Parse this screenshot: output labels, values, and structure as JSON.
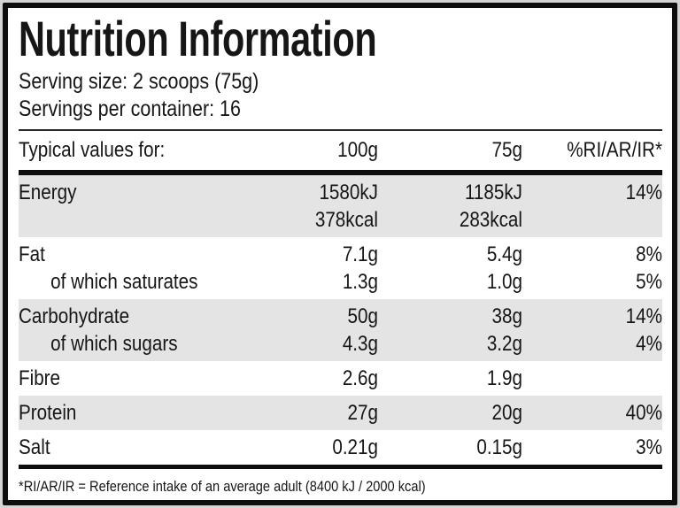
{
  "label": {
    "title": "Nutrition Information",
    "serving_size": "Serving size: 2 scoops (75g)",
    "servings_per_container": "Servings per container: 16",
    "footnote": "*RI/AR/IR = Reference intake of an average adult (8400 kJ / 2000 kcal)"
  },
  "table": {
    "header": {
      "label": "Typical values for:",
      "per_100g": "100g",
      "per_75g": "75g",
      "ri": "%RI/AR/IR*"
    },
    "rows": [
      {
        "id": "energy",
        "shaded": true,
        "lines": [
          {
            "label": "Energy",
            "per_100g": "1580kJ",
            "per_75g": "1185kJ",
            "ri": "14%"
          },
          {
            "label": "",
            "per_100g": "378kcal",
            "per_75g": "283kcal",
            "ri": ""
          }
        ]
      },
      {
        "id": "fat",
        "shaded": false,
        "lines": [
          {
            "label": "Fat",
            "per_100g": "7.1g",
            "per_75g": "5.4g",
            "ri": "8%"
          },
          {
            "label": "of which saturates",
            "indent": true,
            "per_100g": "1.3g",
            "per_75g": "1.0g",
            "ri": "5%"
          }
        ]
      },
      {
        "id": "carbohydrate",
        "shaded": true,
        "lines": [
          {
            "label": "Carbohydrate",
            "per_100g": "50g",
            "per_75g": "38g",
            "ri": "14%"
          },
          {
            "label": "of which sugars",
            "indent": true,
            "per_100g": "4.3g",
            "per_75g": "3.2g",
            "ri": "4%"
          }
        ]
      },
      {
        "id": "fibre",
        "shaded": false,
        "lines": [
          {
            "label": "Fibre",
            "per_100g": "2.6g",
            "per_75g": "1.9g",
            "ri": ""
          }
        ]
      },
      {
        "id": "protein",
        "shaded": true,
        "lines": [
          {
            "label": "Protein",
            "per_100g": "27g",
            "per_75g": "20g",
            "ri": "40%"
          }
        ]
      },
      {
        "id": "salt",
        "shaded": false,
        "lines": [
          {
            "label": "Salt",
            "per_100g": "0.21g",
            "per_75g": "0.15g",
            "ri": "3%"
          }
        ]
      }
    ]
  },
  "colors": {
    "shaded_row": "#e4e4e4",
    "border": "#0e0e0e",
    "background": "#ffffff",
    "outer_background": "#d4d4d4",
    "text": "#161616"
  }
}
